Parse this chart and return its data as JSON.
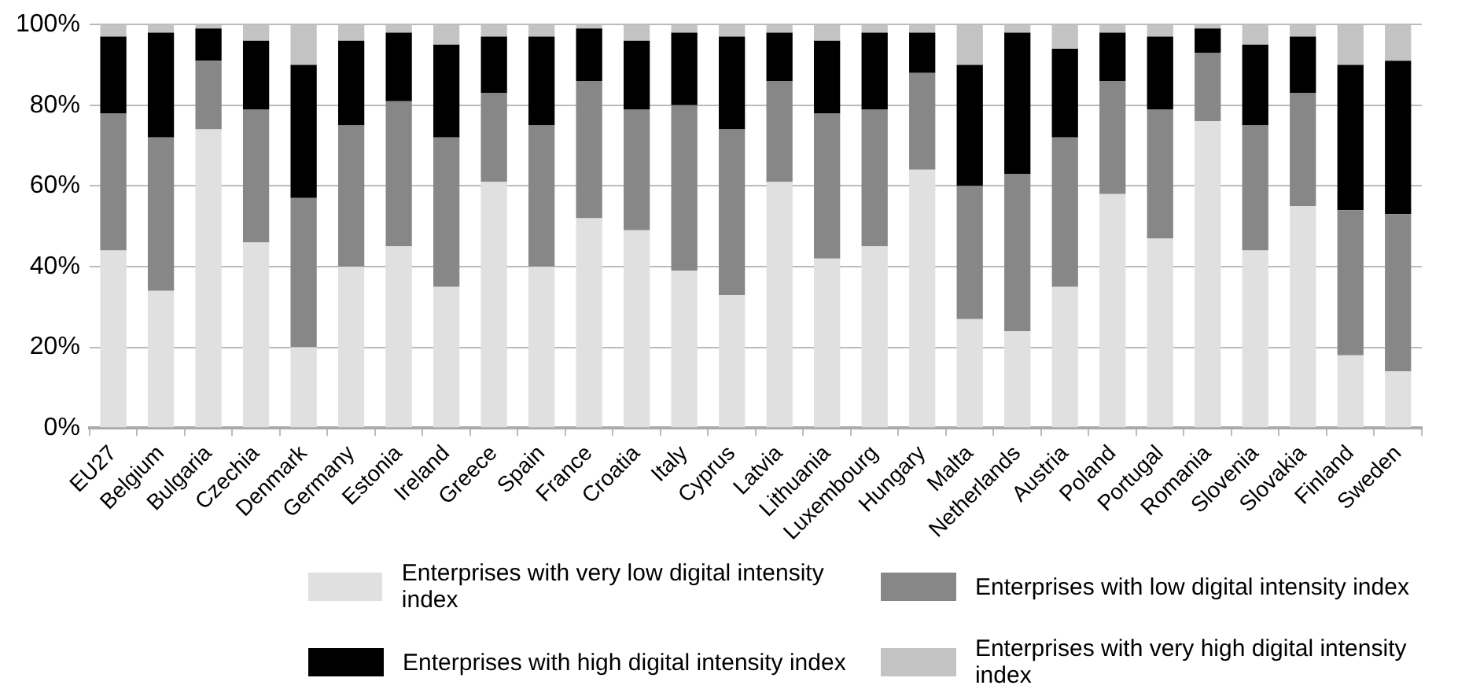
{
  "chart_data": {
    "type": "bar",
    "stacked": true,
    "legend": "bottom",
    "grid": "y",
    "categories": [
      "EU27",
      "Belgium",
      "Bulgaria",
      "Czechia",
      "Denmark",
      "Germany",
      "Estonia",
      "Ireland",
      "Greece",
      "Spain",
      "France",
      "Croatia",
      "Italy",
      "Cyprus",
      "Latvia",
      "Lithuania",
      "Luxembourg",
      "Hungary",
      "Malta",
      "Netherlands",
      "Austria",
      "Poland",
      "Portugal",
      "Romania",
      "Slovenia",
      "Slovakia",
      "Finland",
      "Sweden"
    ],
    "ylim": [
      0,
      100
    ],
    "yticks": [
      {
        "value": 0,
        "label": "0%"
      },
      {
        "value": 20,
        "label": "20%"
      },
      {
        "value": 40,
        "label": "40%"
      },
      {
        "value": 60,
        "label": "60%"
      },
      {
        "value": 80,
        "label": "80%"
      },
      {
        "value": 100,
        "label": "100%"
      }
    ],
    "series": [
      {
        "name": "Enterprises with very low digital intensity index",
        "color": "#e0e0e0",
        "values": [
          44,
          34,
          74,
          46,
          20,
          40,
          45,
          35,
          61,
          40,
          52,
          49,
          39,
          33,
          61,
          42,
          45,
          64,
          27,
          24,
          35,
          58,
          47,
          76,
          44,
          55,
          18,
          14
        ]
      },
      {
        "name": "Enterprises with low digital intensity index",
        "color": "#878787",
        "values": [
          34,
          38,
          17,
          33,
          37,
          35,
          36,
          37,
          22,
          35,
          34,
          30,
          41,
          41,
          25,
          36,
          34,
          24,
          33,
          39,
          37,
          28,
          32,
          17,
          31,
          28,
          36,
          39
        ]
      },
      {
        "name": "Enterprises with high digital intensity index",
        "color": "#000000",
        "values": [
          19,
          26,
          8,
          17,
          33,
          21,
          17,
          23,
          14,
          22,
          13,
          17,
          18,
          23,
          12,
          18,
          19,
          10,
          30,
          35,
          22,
          12,
          18,
          6,
          20,
          14,
          36,
          38
        ]
      },
      {
        "name": "Enterprises with very high digital intensity index",
        "color": "#c3c3c3",
        "values": [
          3,
          2,
          1,
          4,
          10,
          4,
          2,
          5,
          3,
          3,
          1,
          4,
          2,
          3,
          2,
          4,
          2,
          2,
          10,
          2,
          6,
          2,
          3,
          1,
          5,
          3,
          10,
          9
        ]
      }
    ]
  }
}
